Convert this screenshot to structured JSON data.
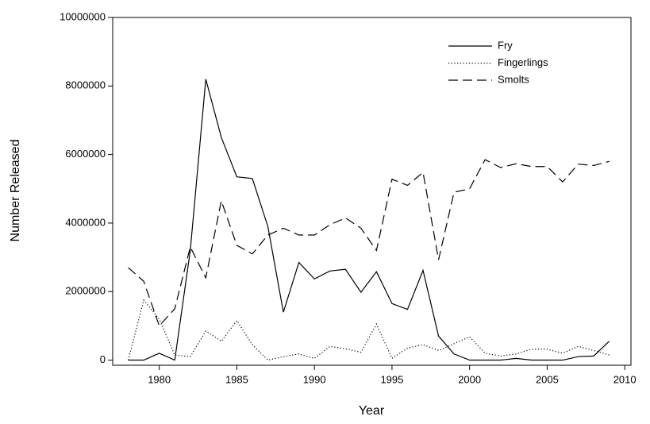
{
  "chart_data": {
    "type": "line",
    "x_label": "Year",
    "y_label": "Number Released",
    "x": [
      1978,
      1979,
      1980,
      1981,
      1982,
      1983,
      1984,
      1985,
      1986,
      1987,
      1988,
      1989,
      1990,
      1991,
      1992,
      1993,
      1994,
      1995,
      1996,
      1997,
      1998,
      1999,
      2000,
      2001,
      2002,
      2003,
      2004,
      2005,
      2006,
      2007,
      2008,
      2009
    ],
    "series": [
      {
        "name": "Fry",
        "color": "#000000",
        "dash": "solid",
        "values": [
          0,
          0,
          200000,
          0,
          3200000,
          8200000,
          6500000,
          5350000,
          5300000,
          3900000,
          1400000,
          2850000,
          2370000,
          2600000,
          2650000,
          1980000,
          2580000,
          1650000,
          1480000,
          2620000,
          700000,
          180000,
          0,
          0,
          0,
          50000,
          0,
          0,
          0,
          100000,
          120000,
          550000
        ]
      },
      {
        "name": "Fingerlings",
        "color": "#000000",
        "dash": "dotted",
        "values": [
          0,
          1750000,
          1200000,
          150000,
          100000,
          850000,
          550000,
          1150000,
          450000,
          0,
          100000,
          180000,
          50000,
          400000,
          330000,
          230000,
          1050000,
          50000,
          350000,
          450000,
          280000,
          480000,
          680000,
          200000,
          120000,
          180000,
          320000,
          320000,
          200000,
          400000,
          280000,
          150000
        ]
      },
      {
        "name": "Smolts",
        "color": "#000000",
        "dash": "dashed",
        "values": [
          2700000,
          2300000,
          1000000,
          1500000,
          3300000,
          2400000,
          4650000,
          3350000,
          3100000,
          3650000,
          3850000,
          3650000,
          3650000,
          3950000,
          4150000,
          3850000,
          3200000,
          5280000,
          5100000,
          5480000,
          2930000,
          4900000,
          5000000,
          5850000,
          5620000,
          5730000,
          5650000,
          5650000,
          5200000,
          5720000,
          5680000,
          5800000
        ]
      }
    ],
    "xlim": [
      1977,
      2010.4
    ],
    "xticks": [
      1980,
      1985,
      1990,
      1995,
      2000,
      2005,
      2010
    ],
    "ylim": [
      -150000,
      10000000
    ],
    "yticks": [
      0,
      2000000,
      4000000,
      6000000,
      8000000,
      10000000
    ],
    "grid": false,
    "legend": "upper right"
  }
}
